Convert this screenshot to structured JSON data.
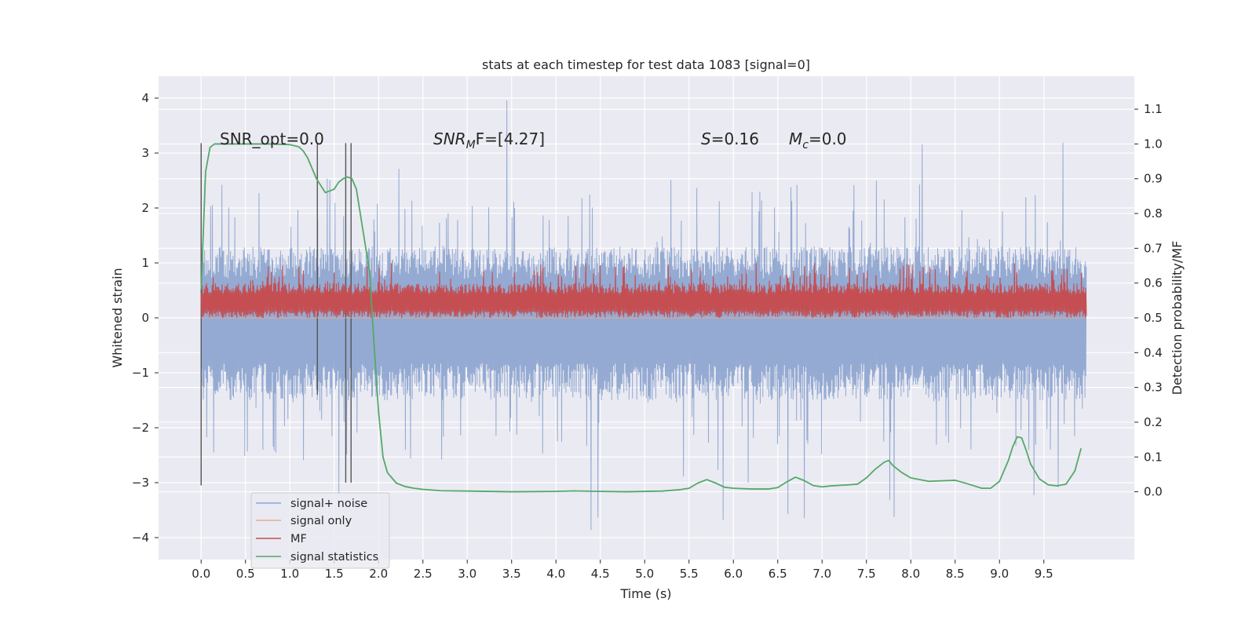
{
  "chart_data": {
    "type": "line",
    "title": "stats at each timestep for test data 1083 [signal=0]",
    "xlabel": "Time (s)",
    "ylabel_left": "Whitened strain",
    "ylabel_right": "Detection probability/MF",
    "x_ticks": [
      "0.0",
      "0.5",
      "1.0",
      "1.5",
      "2.0",
      "2.5",
      "3.0",
      "3.5",
      "4.0",
      "4.5",
      "5.0",
      "5.5",
      "6.0",
      "6.5",
      "7.0",
      "7.5",
      "8.0",
      "8.5",
      "9.0",
      "9.5"
    ],
    "y_left_ticks": [
      "−4",
      "−3",
      "−2",
      "−1",
      "0",
      "1",
      "2",
      "3",
      "4"
    ],
    "y_right_ticks": [
      "0.0",
      "0.1",
      "0.2",
      "0.3",
      "0.4",
      "0.5",
      "0.6",
      "0.7",
      "0.8",
      "0.9",
      "1.0",
      "1.1"
    ],
    "xlim": [
      -0.48,
      10.52
    ],
    "ylim_left": [
      -4.4,
      4.4
    ],
    "ylim_right": [
      -0.195,
      1.195
    ],
    "grid": true,
    "legend_position": "lower-left",
    "annotations": {
      "snr_opt": "SNR_opt=0.0",
      "snr_mf_var": "SNR",
      "snr_mf_sub": "M",
      "snr_mf_rest": "F=[4.27]",
      "s_var": "S",
      "s_rest": "=0.16",
      "mc_var": "M",
      "mc_sub": "c",
      "mc_rest": "=0.0"
    },
    "vertical_markers": [
      0.0,
      1.31,
      1.63,
      1.69
    ],
    "series": [
      {
        "name": "signal+ noise",
        "color": "#8fa6d0",
        "axis": "left",
        "x_range": [
          0.0,
          9.98
        ],
        "envelope": [
          -1.5,
          1.3
        ],
        "spike_range": [
          -3.9,
          4.03
        ]
      },
      {
        "name": "signal only",
        "color": "#e8a98c",
        "axis": "left",
        "x": [
          0.0,
          9.98
        ],
        "y": [
          0.0,
          0.0
        ]
      },
      {
        "name": "MF",
        "color": "#c44e52",
        "axis": "right",
        "x_range": [
          0.0,
          9.98
        ],
        "band": [
          0.5,
          0.6
        ],
        "peak_max": 0.66
      },
      {
        "name": "signal statistics",
        "color": "#55a868",
        "axis": "right",
        "x": [
          0.0,
          0.05,
          0.1,
          0.15,
          0.25,
          0.4,
          0.6,
          0.8,
          1.0,
          1.1,
          1.15,
          1.2,
          1.3,
          1.4,
          1.5,
          1.55,
          1.6,
          1.65,
          1.7,
          1.75,
          1.8,
          1.9,
          1.95,
          2.0,
          2.05,
          2.1,
          2.15,
          2.2,
          2.3,
          2.4,
          2.5,
          2.7,
          3.0,
          3.5,
          4.0,
          4.2,
          4.5,
          4.8,
          5.2,
          5.4,
          5.5,
          5.6,
          5.7,
          5.8,
          5.9,
          6.0,
          6.2,
          6.4,
          6.5,
          6.6,
          6.7,
          6.8,
          6.9,
          7.0,
          7.1,
          7.3,
          7.4,
          7.5,
          7.6,
          7.7,
          7.75,
          7.8,
          7.9,
          8.0,
          8.2,
          8.4,
          8.5,
          8.6,
          8.8,
          8.9,
          9.0,
          9.1,
          9.15,
          9.2,
          9.25,
          9.3,
          9.35,
          9.45,
          9.55,
          9.65,
          9.75,
          9.85,
          9.92
        ],
        "y": [
          0.58,
          0.92,
          0.99,
          1.0,
          1.0,
          1.0,
          1.0,
          1.0,
          0.998,
          0.992,
          0.98,
          0.96,
          0.9,
          0.86,
          0.87,
          0.89,
          0.9,
          0.905,
          0.9,
          0.87,
          0.79,
          0.63,
          0.42,
          0.23,
          0.1,
          0.055,
          0.04,
          0.025,
          0.015,
          0.01,
          0.007,
          0.003,
          0.002,
          0.0,
          0.001,
          0.0025,
          0.001,
          0.0,
          0.002,
          0.006,
          0.01,
          0.025,
          0.035,
          0.025,
          0.013,
          0.01,
          0.008,
          0.008,
          0.012,
          0.028,
          0.042,
          0.032,
          0.018,
          0.014,
          0.017,
          0.02,
          0.022,
          0.04,
          0.065,
          0.085,
          0.09,
          0.075,
          0.055,
          0.04,
          0.03,
          0.032,
          0.033,
          0.026,
          0.01,
          0.01,
          0.03,
          0.09,
          0.13,
          0.158,
          0.155,
          0.12,
          0.08,
          0.037,
          0.02,
          0.017,
          0.022,
          0.06,
          0.125
        ]
      }
    ]
  }
}
